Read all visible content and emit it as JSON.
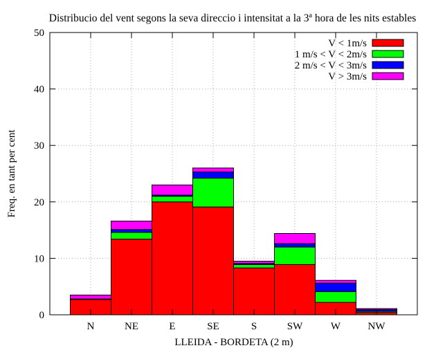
{
  "chart_data": {
    "type": "bar",
    "stacked": true,
    "title_main": "Distribucio del vent segons la seva direccio i intensitat a la 3",
    "title_sup": "a",
    "title_tail": " hora de les nits estables",
    "xlabel": "LLEIDA - BORDETA (2 m)",
    "ylabel": "Freq. en tant per cent",
    "ylim": [
      0,
      50
    ],
    "yticks": [
      "0",
      "10",
      "20",
      "30",
      "40",
      "50"
    ],
    "grid": true,
    "legend_position": "top-right",
    "categories": [
      "N",
      "NE",
      "E",
      "SE",
      "S",
      "SW",
      "W",
      "NW"
    ],
    "series": [
      {
        "name": "V < 1m/s",
        "color": "#ff0000",
        "values": [
          2.7,
          13.4,
          20.0,
          19.1,
          8.3,
          8.9,
          2.2,
          0.4
        ]
      },
      {
        "name": "1 m/s < V < 2m/s",
        "color": "#00ff00",
        "values": [
          0.1,
          1.2,
          1.0,
          5.1,
          0.6,
          3.1,
          1.9,
          0.2
        ]
      },
      {
        "name": "2 m/s < V < 3m/s",
        "color": "#0000ff",
        "values": [
          0.0,
          0.5,
          0.2,
          1.1,
          0.2,
          0.6,
          1.5,
          0.3
        ]
      },
      {
        "name": "V > 3m/s",
        "color": "#ff00ff",
        "values": [
          0.7,
          1.5,
          1.8,
          0.7,
          0.4,
          1.8,
          0.5,
          0.2
        ]
      }
    ]
  }
}
